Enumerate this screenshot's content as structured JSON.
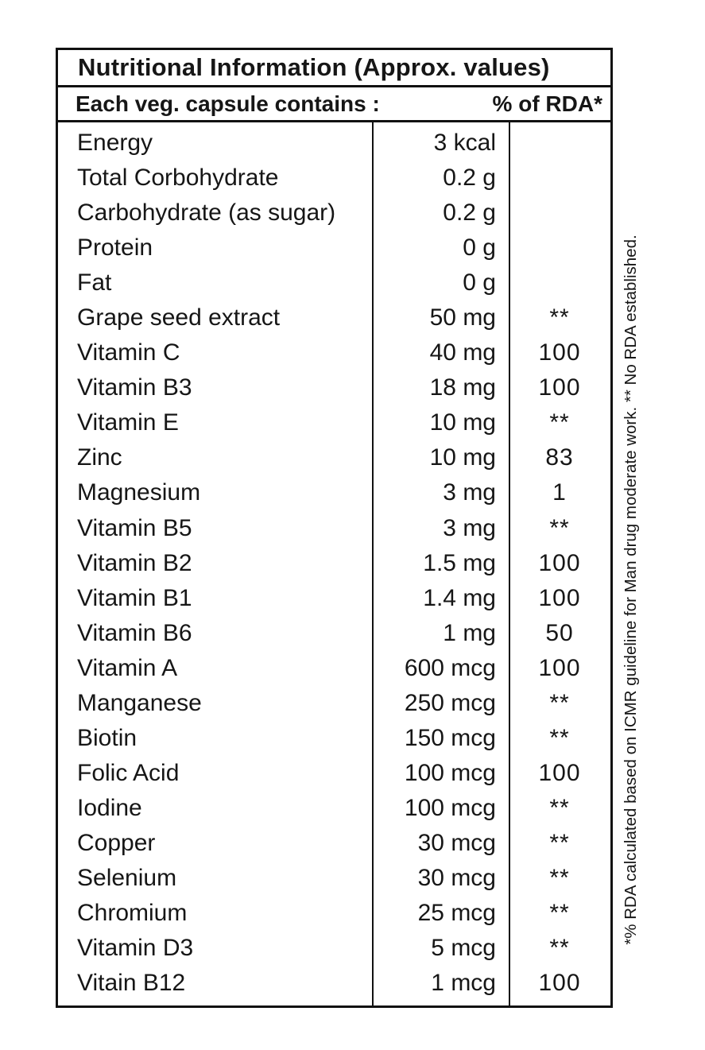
{
  "label": {
    "title": "Nutritional Information (Approx. values)",
    "header_left": "Each veg. capsule contains :",
    "header_right": "% of RDA*",
    "footnote": "*% RDA calculated based on ICMR guideline for Man drug moderate work.  ** No RDA established.",
    "rows": [
      {
        "name": "Energy",
        "amount": "3 kcal",
        "rda": ""
      },
      {
        "name": "Total Corbohydrate",
        "amount": "0.2 g",
        "rda": ""
      },
      {
        "name": "Carbohydrate (as sugar)",
        "amount": "0.2 g",
        "rda": ""
      },
      {
        "name": "Protein",
        "amount": "0 g",
        "rda": ""
      },
      {
        "name": "Fat",
        "amount": "0 g",
        "rda": ""
      },
      {
        "name": "Grape seed extract",
        "amount": "50 mg",
        "rda": "**"
      },
      {
        "name": "Vitamin C",
        "amount": "40 mg",
        "rda": "100"
      },
      {
        "name": "Vitamin B3",
        "amount": "18 mg",
        "rda": "100"
      },
      {
        "name": "Vitamin E",
        "amount": "10 mg",
        "rda": "**"
      },
      {
        "name": "Zinc",
        "amount": "10 mg",
        "rda": "83"
      },
      {
        "name": "Magnesium",
        "amount": "3 mg",
        "rda": "1"
      },
      {
        "name": "Vitamin B5",
        "amount": "3 mg",
        "rda": "**"
      },
      {
        "name": "Vitamin B2",
        "amount": "1.5 mg",
        "rda": "100"
      },
      {
        "name": "Vitamin B1",
        "amount": "1.4 mg",
        "rda": "100"
      },
      {
        "name": "Vitamin B6",
        "amount": "1 mg",
        "rda": "50"
      },
      {
        "name": "Vitamin  A",
        "amount": "600 mcg",
        "rda": "100"
      },
      {
        "name": "Manganese",
        "amount": "250 mcg",
        "rda": "**"
      },
      {
        "name": "Biotin",
        "amount": "150 mcg",
        "rda": "**"
      },
      {
        "name": "Folic Acid",
        "amount": "100 mcg",
        "rda": "100"
      },
      {
        "name": "Iodine",
        "amount": "100 mcg",
        "rda": "**"
      },
      {
        "name": "Copper",
        "amount": "30 mcg",
        "rda": "**"
      },
      {
        "name": "Selenium",
        "amount": "30 mcg",
        "rda": "**"
      },
      {
        "name": "Chromium",
        "amount": "25 mcg",
        "rda": "**"
      },
      {
        "name": "Vitamin D3",
        "amount": "5 mcg",
        "rda": "**"
      },
      {
        "name": "Vitain B12",
        "amount": "1 mcg",
        "rda": "100"
      }
    ]
  }
}
